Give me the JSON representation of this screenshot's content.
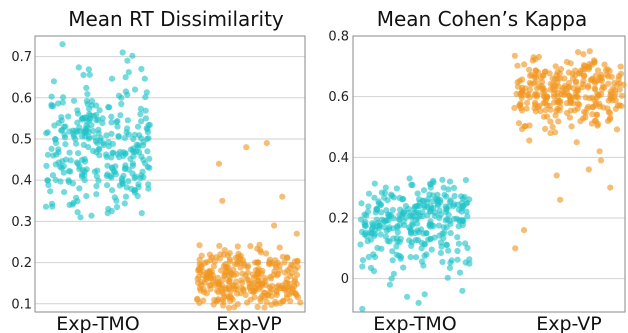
{
  "chart_data": [
    {
      "type": "scatter",
      "title": "Mean RT Dissimilarity",
      "categories": [
        "Exp-TMO",
        "Exp-VP"
      ],
      "yticks": [
        "0.1",
        "0.2",
        "0.3",
        "0.4",
        "0.5",
        "0.6",
        "0.7"
      ],
      "ylim": [
        0.08,
        0.75
      ],
      "grid": true,
      "series": [
        {
          "category": "Exp-TMO",
          "color": "#1ec3c8",
          "count": 300,
          "min": 0.31,
          "max": 0.73,
          "center": 0.48,
          "spread": 0.085,
          "sample_values": [
            0.73,
            0.71,
            0.69,
            0.67,
            0.64,
            0.62,
            0.6,
            0.58,
            0.56,
            0.55,
            0.53,
            0.52,
            0.51,
            0.5,
            0.49,
            0.48,
            0.47,
            0.46,
            0.45,
            0.44,
            0.43,
            0.42,
            0.41,
            0.4,
            0.39,
            0.38,
            0.37,
            0.36,
            0.35,
            0.34,
            0.33,
            0.32,
            0.31
          ]
        },
        {
          "category": "Exp-VP",
          "color": "#f0961e",
          "count": 300,
          "min": 0.09,
          "max": 0.49,
          "center": 0.155,
          "spread": 0.04,
          "sample_values": [
            0.49,
            0.48,
            0.44,
            0.36,
            0.35,
            0.29,
            0.27,
            0.24,
            0.23,
            0.22,
            0.21,
            0.2,
            0.19,
            0.18,
            0.17,
            0.16,
            0.15,
            0.14,
            0.13,
            0.12,
            0.11,
            0.1,
            0.09
          ]
        }
      ]
    },
    {
      "type": "scatter",
      "title": "Mean Cohen’s Kappa",
      "categories": [
        "Exp-TMO",
        "Exp-VP"
      ],
      "yticks": [
        "0",
        "0.2",
        "0.4",
        "0.6",
        "0.8"
      ],
      "ylim": [
        -0.11,
        0.8
      ],
      "grid": true,
      "series": [
        {
          "category": "Exp-TMO",
          "color": "#1ec3c8",
          "count": 300,
          "min": -0.1,
          "max": 0.33,
          "center": 0.2,
          "spread": 0.075,
          "sample_values": [
            0.33,
            0.32,
            0.3,
            0.28,
            0.26,
            0.25,
            0.24,
            0.23,
            0.22,
            0.21,
            0.2,
            0.19,
            0.18,
            0.17,
            0.16,
            0.15,
            0.14,
            0.12,
            0.1,
            0.08,
            0.06,
            0.04,
            0.02,
            0.0,
            -0.02,
            -0.04,
            -0.06,
            -0.08,
            -0.1
          ]
        },
        {
          "category": "Exp-VP",
          "color": "#f0961e",
          "count": 300,
          "min": 0.1,
          "max": 0.75,
          "center": 0.62,
          "spread": 0.06,
          "sample_values": [
            0.75,
            0.74,
            0.73,
            0.72,
            0.71,
            0.7,
            0.69,
            0.68,
            0.67,
            0.66,
            0.65,
            0.64,
            0.63,
            0.62,
            0.61,
            0.6,
            0.59,
            0.58,
            0.57,
            0.56,
            0.55,
            0.54,
            0.52,
            0.5,
            0.48,
            0.45,
            0.42,
            0.39,
            0.36,
            0.34,
            0.3,
            0.26,
            0.16,
            0.1
          ]
        }
      ]
    }
  ]
}
